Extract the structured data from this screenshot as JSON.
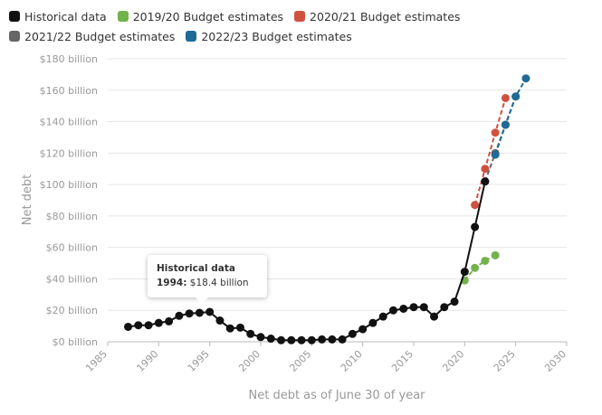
{
  "legend": [
    {
      "label": "Historical data",
      "color": "#111111"
    },
    {
      "label": "2019/20 Budget estimates",
      "color": "#72b34b"
    },
    {
      "label": "2020/21 Budget estimates",
      "color": "#d0513f"
    },
    {
      "label": "2021/22 Budget estimates",
      "color": "#666666"
    },
    {
      "label": "2022/23 Budget estimates",
      "color": "#1f6a96"
    }
  ],
  "tooltip": {
    "series": "Historical data",
    "year": "1994:",
    "value": "$18.4 billion"
  },
  "chart_data": {
    "type": "line",
    "title": "",
    "xlabel": "Net debt as of June 30 of year",
    "ylabel": "Net debt",
    "xlim": [
      1985,
      2030
    ],
    "ylim": [
      0,
      180
    ],
    "x_ticks": [
      "1985",
      "1990",
      "1995",
      "2000",
      "2005",
      "2010",
      "2015",
      "2020",
      "2025",
      "2030"
    ],
    "y_ticks": [
      "$0 billion",
      "$20 billion",
      "$40 billion",
      "$60 billion",
      "$80 billion",
      "$100 billion",
      "$120 billion",
      "$140 billion",
      "$160 billion",
      "$180 billion"
    ],
    "y_tick_values": [
      0,
      20,
      40,
      60,
      80,
      100,
      120,
      140,
      160,
      180
    ],
    "x_tick_values": [
      1985,
      1990,
      1995,
      2000,
      2005,
      2010,
      2015,
      2020,
      2025,
      2030
    ],
    "grid": "horizontal",
    "legend_position": "top",
    "series": [
      {
        "name": "Historical data",
        "color": "#111111",
        "dashed": false,
        "x": [
          1987,
          1988,
          1989,
          1990,
          1991,
          1992,
          1993,
          1994,
          1995,
          1996,
          1997,
          1998,
          1999,
          2000,
          2001,
          2002,
          2003,
          2004,
          2005,
          2006,
          2007,
          2008,
          2009,
          2010,
          2011,
          2012,
          2013,
          2014,
          2015,
          2016,
          2017,
          2018,
          2019,
          2020,
          2021,
          2022
        ],
        "y": [
          9.5,
          10.5,
          10.5,
          12,
          13,
          16.5,
          18,
          18.4,
          19,
          13.5,
          8.5,
          9,
          5,
          3,
          2,
          1,
          1,
          1,
          1,
          1.5,
          1.5,
          1.5,
          5,
          8,
          12,
          16,
          20,
          21,
          22,
          22,
          16,
          22,
          25.5,
          44.5,
          73,
          102
        ]
      },
      {
        "name": "2019/20 Budget estimates",
        "color": "#72b34b",
        "dashed": true,
        "x": [
          2020,
          2021,
          2022,
          2023
        ],
        "y": [
          39,
          47,
          51.5,
          55
        ]
      },
      {
        "name": "2020/21 Budget estimates",
        "color": "#d0513f",
        "dashed": true,
        "x": [
          2021,
          2022,
          2023,
          2024
        ],
        "y": [
          87,
          110,
          133,
          155
        ]
      },
      {
        "name": "2021/22 Budget estimates",
        "color": "#666666",
        "dashed": true,
        "x": [
          2022,
          2023,
          2024,
          2025
        ],
        "y": [
          102,
          120,
          138,
          156
        ]
      },
      {
        "name": "2022/23 Budget estimates",
        "color": "#1f6a96",
        "dashed": true,
        "x": [
          2023,
          2024,
          2025,
          2026
        ],
        "y": [
          119,
          138,
          156,
          167.5
        ]
      }
    ]
  }
}
